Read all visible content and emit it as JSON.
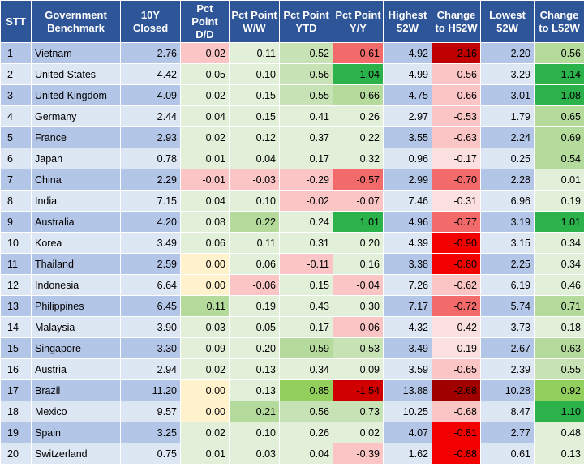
{
  "headers": {
    "stt": "STT",
    "benchmark": "Government Benchmark",
    "closed": "10Y Closed",
    "dd": "Pct Point D/D",
    "ww": "Pct Point W/W",
    "ytd": "Pct Point YTD",
    "yy": "Pct Point Y/Y",
    "high": "Highest 52W",
    "ch": "Change to H52W",
    "low": "Lowest 52W",
    "cl": "Change to L52W"
  },
  "columns": [
    "closed",
    "dd",
    "ww",
    "ytd",
    "yy",
    "high",
    "ch",
    "low",
    "cl"
  ],
  "colors": {
    "header_bg": "#2e5597",
    "row_odd": "#b4c6e7",
    "row_even": "#dde6f3"
  },
  "rows": [
    {
      "stt": "1",
      "name": "Vietnam",
      "closed": "2.76",
      "dd": "-0.02",
      "ww": "0.11",
      "ytd": "0.52",
      "yy": "-0.61",
      "high": "4.92",
      "ch": "-2.16",
      "low": "2.20",
      "cl": "0.56",
      "bg": {
        "closed": "",
        "dd": "#fbc5c5",
        "ww": "#e2efd9",
        "ytd": "#c7e2b5",
        "yy": "#f36a6a",
        "high": "",
        "ch": "#c00000",
        "low": "",
        "cl": "#b4da9c"
      }
    },
    {
      "stt": "2",
      "name": "United States",
      "closed": "4.42",
      "dd": "0.05",
      "ww": "0.10",
      "ytd": "0.56",
      "yy": "1.04",
      "high": "4.99",
      "ch": "-0.56",
      "low": "3.29",
      "cl": "1.14",
      "bg": {
        "closed": "",
        "dd": "#e2efd9",
        "ww": "#e2efd9",
        "ytd": "#c7e2b5",
        "yy": "#2cb24b",
        "high": "",
        "ch": "#fbc5c5",
        "low": "",
        "cl": "#2cb24b"
      }
    },
    {
      "stt": "3",
      "name": "United Kingdom",
      "closed": "4.09",
      "dd": "0.02",
      "ww": "0.15",
      "ytd": "0.55",
      "yy": "0.66",
      "high": "4.75",
      "ch": "-0.66",
      "low": "3.01",
      "cl": "1.08",
      "bg": {
        "closed": "",
        "dd": "#e2efd9",
        "ww": "#e2efd9",
        "ytd": "#c7e2b5",
        "yy": "#b4da9c",
        "high": "",
        "ch": "#fbc5c5",
        "low": "",
        "cl": "#2cb24b"
      }
    },
    {
      "stt": "4",
      "name": "Germany",
      "closed": "2.44",
      "dd": "0.04",
      "ww": "0.15",
      "ytd": "0.41",
      "yy": "0.26",
      "high": "2.97",
      "ch": "-0.53",
      "low": "1.79",
      "cl": "0.65",
      "bg": {
        "closed": "",
        "dd": "#e2efd9",
        "ww": "#e2efd9",
        "ytd": "#e2efd9",
        "yy": "#e2efd9",
        "high": "",
        "ch": "#fbc5c5",
        "low": "",
        "cl": "#b4da9c"
      }
    },
    {
      "stt": "5",
      "name": "France",
      "closed": "2.93",
      "dd": "0.02",
      "ww": "0.12",
      "ytd": "0.37",
      "yy": "0.22",
      "high": "3.55",
      "ch": "-0.63",
      "low": "2.24",
      "cl": "0.69",
      "bg": {
        "closed": "",
        "dd": "#e2efd9",
        "ww": "#e2efd9",
        "ytd": "#e2efd9",
        "yy": "#e2efd9",
        "high": "",
        "ch": "#fbc5c5",
        "low": "",
        "cl": "#b4da9c"
      }
    },
    {
      "stt": "6",
      "name": "Japan",
      "closed": "0.78",
      "dd": "0.01",
      "ww": "0.04",
      "ytd": "0.17",
      "yy": "0.32",
      "high": "0.96",
      "ch": "-0.17",
      "low": "0.25",
      "cl": "0.54",
      "bg": {
        "closed": "",
        "dd": "#e2efd9",
        "ww": "#e2efd9",
        "ytd": "#e2efd9",
        "yy": "#e2efd9",
        "high": "",
        "ch": "#fbe0e0",
        "low": "",
        "cl": "#b4da9c"
      }
    },
    {
      "stt": "7",
      "name": "China",
      "closed": "2.29",
      "dd": "-0.01",
      "ww": "-0.03",
      "ytd": "-0.29",
      "yy": "-0.57",
      "high": "2.99",
      "ch": "-0.70",
      "low": "2.28",
      "cl": "0.01",
      "bg": {
        "closed": "",
        "dd": "#fbc5c5",
        "ww": "#fbc5c5",
        "ytd": "#fbc5c5",
        "yy": "#f36a6a",
        "high": "",
        "ch": "#f36a6a",
        "low": "",
        "cl": "#e2efd9"
      }
    },
    {
      "stt": "8",
      "name": "India",
      "closed": "7.15",
      "dd": "0.04",
      "ww": "0.10",
      "ytd": "-0.02",
      "yy": "-0.07",
      "high": "7.46",
      "ch": "-0.31",
      "low": "6.96",
      "cl": "0.19",
      "bg": {
        "closed": "",
        "dd": "#e2efd9",
        "ww": "#e2efd9",
        "ytd": "#fbc5c5",
        "yy": "#fbc5c5",
        "high": "",
        "ch": "#fbe0e0",
        "low": "",
        "cl": "#e2efd9"
      }
    },
    {
      "stt": "9",
      "name": "Australia",
      "closed": "4.20",
      "dd": "0.08",
      "ww": "0.22",
      "ytd": "0.24",
      "yy": "1.01",
      "high": "4.96",
      "ch": "-0.77",
      "low": "3.19",
      "cl": "1.01",
      "bg": {
        "closed": "",
        "dd": "#e2efd9",
        "ww": "#b4da9c",
        "ytd": "#e2efd9",
        "yy": "#2cb24b",
        "high": "",
        "ch": "#f36a6a",
        "low": "",
        "cl": "#2cb24b"
      }
    },
    {
      "stt": "10",
      "name": "Korea",
      "closed": "3.49",
      "dd": "0.06",
      "ww": "0.11",
      "ytd": "0.31",
      "yy": "0.20",
      "high": "4.39",
      "ch": "-0.90",
      "low": "3.15",
      "cl": "0.34",
      "bg": {
        "closed": "",
        "dd": "#e2efd9",
        "ww": "#e2efd9",
        "ytd": "#e2efd9",
        "yy": "#e2efd9",
        "high": "",
        "ch": "#f30000",
        "low": "",
        "cl": "#e2efd9"
      }
    },
    {
      "stt": "11",
      "name": "Thailand",
      "closed": "2.59",
      "dd": "0.00",
      "ww": "0.06",
      "ytd": "-0.11",
      "yy": "0.16",
      "high": "3.38",
      "ch": "-0.80",
      "low": "2.25",
      "cl": "0.34",
      "bg": {
        "closed": "",
        "dd": "#fff2cc",
        "ww": "#e2efd9",
        "ytd": "#fbc5c5",
        "yy": "#e2efd9",
        "high": "",
        "ch": "#f30000",
        "low": "",
        "cl": "#e2efd9"
      }
    },
    {
      "stt": "12",
      "name": "Indonesia",
      "closed": "6.64",
      "dd": "0.00",
      "ww": "-0.06",
      "ytd": "0.15",
      "yy": "-0.04",
      "high": "7.26",
      "ch": "-0.62",
      "low": "6.19",
      "cl": "0.46",
      "bg": {
        "closed": "",
        "dd": "#fff2cc",
        "ww": "#fbc5c5",
        "ytd": "#e2efd9",
        "yy": "#fbc5c5",
        "high": "",
        "ch": "#fbc5c5",
        "low": "",
        "cl": "#e2efd9"
      }
    },
    {
      "stt": "13",
      "name": "Philippines",
      "closed": "6.45",
      "dd": "0.11",
      "ww": "0.19",
      "ytd": "0.43",
      "yy": "0.30",
      "high": "7.17",
      "ch": "-0.72",
      "low": "5.74",
      "cl": "0.71",
      "bg": {
        "closed": "",
        "dd": "#b4da9c",
        "ww": "#e2efd9",
        "ytd": "#e2efd9",
        "yy": "#e2efd9",
        "high": "",
        "ch": "#f36a6a",
        "low": "",
        "cl": "#b4da9c"
      }
    },
    {
      "stt": "14",
      "name": "Malaysia",
      "closed": "3.90",
      "dd": "0.03",
      "ww": "0.05",
      "ytd": "0.17",
      "yy": "-0.06",
      "high": "4.32",
      "ch": "-0.42",
      "low": "3.73",
      "cl": "0.18",
      "bg": {
        "closed": "",
        "dd": "#e2efd9",
        "ww": "#e2efd9",
        "ytd": "#e2efd9",
        "yy": "#fbc5c5",
        "high": "",
        "ch": "#fbe0e0",
        "low": "",
        "cl": "#e2efd9"
      }
    },
    {
      "stt": "15",
      "name": "Singapore",
      "closed": "3.30",
      "dd": "0.09",
      "ww": "0.20",
      "ytd": "0.59",
      "yy": "0.53",
      "high": "3.49",
      "ch": "-0.19",
      "low": "2.67",
      "cl": "0.63",
      "bg": {
        "closed": "",
        "dd": "#e2efd9",
        "ww": "#e2efd9",
        "ytd": "#b4da9c",
        "yy": "#c7e2b5",
        "high": "",
        "ch": "#fbe0e0",
        "low": "",
        "cl": "#b4da9c"
      }
    },
    {
      "stt": "16",
      "name": "Austria",
      "closed": "2.94",
      "dd": "0.02",
      "ww": "0.13",
      "ytd": "0.34",
      "yy": "0.09",
      "high": "3.59",
      "ch": "-0.65",
      "low": "2.39",
      "cl": "0.55",
      "bg": {
        "closed": "",
        "dd": "#e2efd9",
        "ww": "#e2efd9",
        "ytd": "#e2efd9",
        "yy": "#e2efd9",
        "high": "",
        "ch": "#fbc5c5",
        "low": "",
        "cl": "#c7e2b5"
      }
    },
    {
      "stt": "17",
      "name": "Brazil",
      "closed": "11.20",
      "dd": "0.00",
      "ww": "0.13",
      "ytd": "0.85",
      "yy": "-1.54",
      "high": "13.88",
      "ch": "-2.68",
      "low": "10.28",
      "cl": "0.92",
      "bg": {
        "closed": "",
        "dd": "#fff2cc",
        "ww": "#e2efd9",
        "ytd": "#92cf5c",
        "yy": "#d00000",
        "high": "",
        "ch": "#a00000",
        "low": "",
        "cl": "#92cf5c"
      }
    },
    {
      "stt": "18",
      "name": "Mexico",
      "closed": "9.57",
      "dd": "0.00",
      "ww": "0.21",
      "ytd": "0.56",
      "yy": "0.73",
      "high": "10.25",
      "ch": "-0.68",
      "low": "8.47",
      "cl": "1.10",
      "bg": {
        "closed": "",
        "dd": "#fff2cc",
        "ww": "#b4da9c",
        "ytd": "#c7e2b5",
        "yy": "#c7e2b5",
        "high": "",
        "ch": "#fbc5c5",
        "low": "",
        "cl": "#2cb24b"
      }
    },
    {
      "stt": "19",
      "name": "Spain",
      "closed": "3.25",
      "dd": "0.02",
      "ww": "0.10",
      "ytd": "0.26",
      "yy": "0.02",
      "high": "4.07",
      "ch": "-0.81",
      "low": "2.77",
      "cl": "0.48",
      "bg": {
        "closed": "",
        "dd": "#e2efd9",
        "ww": "#e2efd9",
        "ytd": "#e2efd9",
        "yy": "#e2efd9",
        "high": "",
        "ch": "#f30000",
        "low": "",
        "cl": "#e2efd9"
      }
    },
    {
      "stt": "20",
      "name": "Switzerland",
      "closed": "0.75",
      "dd": "0.01",
      "ww": "0.03",
      "ytd": "0.04",
      "yy": "-0.39",
      "high": "1.62",
      "ch": "-0.88",
      "low": "0.61",
      "cl": "0.13",
      "bg": {
        "closed": "",
        "dd": "#e2efd9",
        "ww": "#e2efd9",
        "ytd": "#e2efd9",
        "yy": "#fbc5c5",
        "high": "",
        "ch": "#f30000",
        "low": "",
        "cl": "#e2efd9"
      }
    }
  ]
}
